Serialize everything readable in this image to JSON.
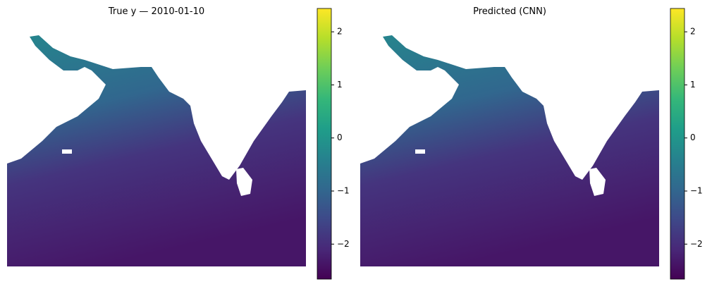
{
  "chart_data": [
    {
      "type": "heatmap",
      "title": "True y — 2010-01-10",
      "colormap": "viridis",
      "clim": [
        -2.66,
        2.44
      ],
      "cticks": [
        {
          "value": -2,
          "label": "−2"
        },
        {
          "value": -1,
          "label": "−1"
        },
        0,
        1,
        2
      ]
    },
    {
      "type": "heatmap",
      "title": "Predicted (CNN)",
      "colormap": "viridis",
      "clim": [
        -2.66,
        2.44
      ],
      "cticks": [
        {
          "value": -2,
          "label": "−2"
        },
        {
          "value": -1,
          "label": "−1"
        },
        0,
        1,
        2
      ]
    }
  ]
}
